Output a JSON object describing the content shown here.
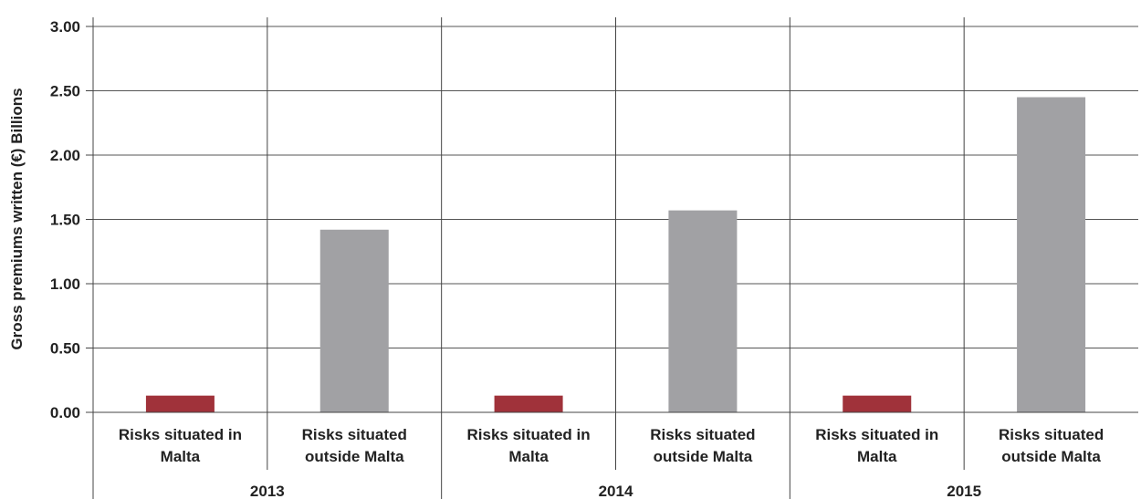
{
  "chart_data": {
    "type": "bar",
    "title": "",
    "ylabel": "Gross premiums written (€) Billions",
    "xlabel": "",
    "ylim": [
      0,
      3
    ],
    "yticks": [
      "0.00",
      "0.50",
      "1.00",
      "1.50",
      "2.00",
      "2.50",
      "3.00"
    ],
    "grid": "horizontal",
    "groups": [
      {
        "label": "2013",
        "bars": [
          {
            "label": [
              "Risks situated in",
              "Malta"
            ],
            "value": 0.13,
            "color": "#a0323a"
          },
          {
            "label": [
              "Risks situated",
              "outside Malta"
            ],
            "value": 1.42,
            "color": "#a1a1a4"
          }
        ]
      },
      {
        "label": "2014",
        "bars": [
          {
            "label": [
              "Risks situated in",
              "Malta"
            ],
            "value": 0.13,
            "color": "#a0323a"
          },
          {
            "label": [
              "Risks situated",
              "outside Malta"
            ],
            "value": 1.57,
            "color": "#a1a1a4"
          }
        ]
      },
      {
        "label": "2015",
        "bars": [
          {
            "label": [
              "Risks situated in",
              "Malta"
            ],
            "value": 0.13,
            "color": "#a0323a"
          },
          {
            "label": [
              "Risks situated",
              "outside Malta"
            ],
            "value": 2.45,
            "color": "#a1a1a4"
          }
        ]
      }
    ]
  }
}
